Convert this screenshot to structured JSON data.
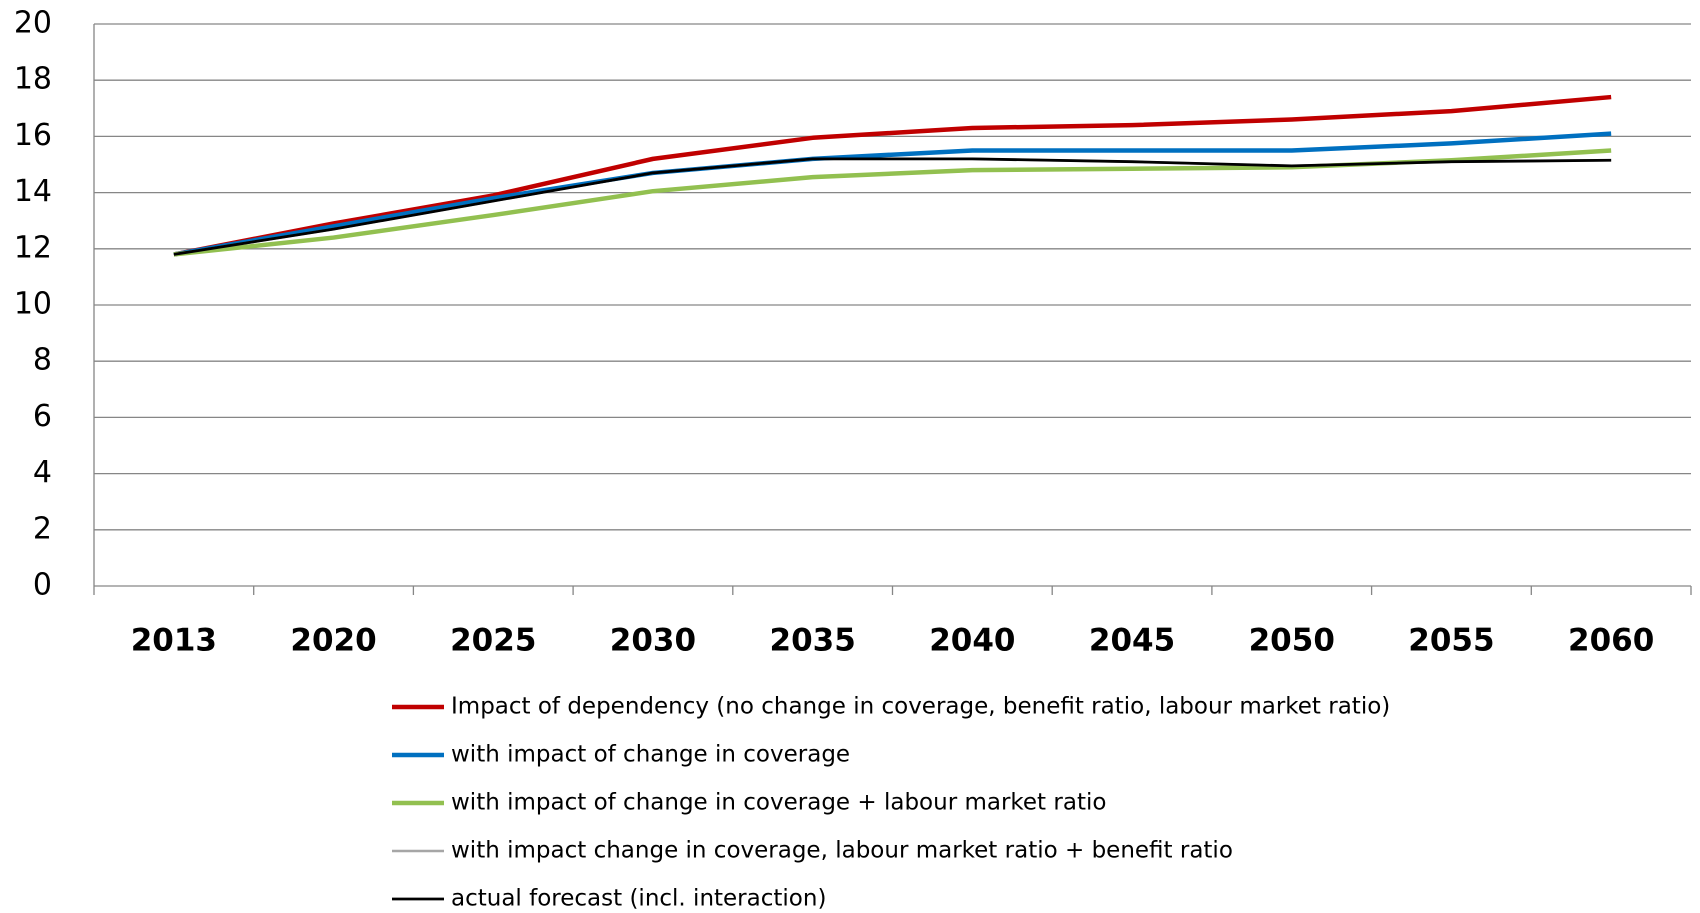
{
  "chart_data": {
    "type": "line",
    "categories": [
      "2013",
      "2020",
      "2025",
      "2030",
      "2035",
      "2040",
      "2045",
      "2050",
      "2055",
      "2060"
    ],
    "series": [
      {
        "name": "Impact of dependency (no change in coverage, benefit ratio, labour market ratio)",
        "color": "#c00000",
        "values": [
          11.8,
          12.9,
          13.9,
          15.2,
          15.95,
          16.3,
          16.4,
          16.6,
          16.9,
          17.4
        ]
      },
      {
        "name": "with impact of change in coverage",
        "color": "#0070c0",
        "values": [
          11.8,
          12.8,
          13.8,
          14.7,
          15.2,
          15.5,
          15.5,
          15.5,
          15.75,
          16.1
        ]
      },
      {
        "name": "with impact of change in coverage + labour market ratio",
        "color": "#92c050",
        "values": [
          11.8,
          12.4,
          13.2,
          14.05,
          14.55,
          14.8,
          14.85,
          14.9,
          15.15,
          15.5
        ]
      },
      {
        "name": "with impact change in coverage, labour market ratio + benefit ratio",
        "color": "#a6a6a6",
        "values": [
          11.8,
          12.7,
          13.7,
          14.7,
          15.2,
          15.2,
          15.1,
          14.95,
          15.1,
          15.15
        ]
      },
      {
        "name": "actual forecast (incl. interaction)",
        "color": "#000000",
        "values": [
          11.8,
          12.7,
          13.7,
          14.7,
          15.2,
          15.2,
          15.1,
          14.95,
          15.1,
          15.15
        ]
      }
    ],
    "ylim": [
      0,
      20
    ],
    "yticks": [
      0,
      2,
      4,
      6,
      8,
      10,
      12,
      14,
      16,
      18,
      20
    ],
    "grid": true,
    "legend": "bottom"
  }
}
